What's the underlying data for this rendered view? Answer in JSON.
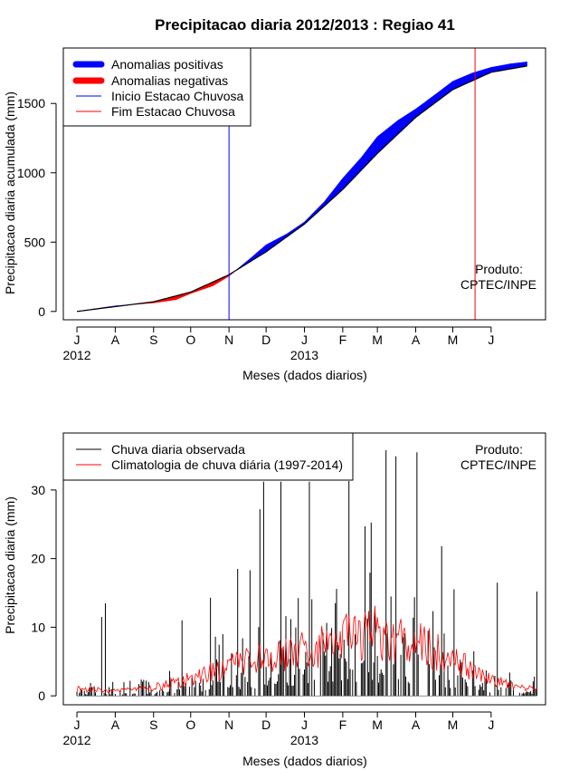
{
  "page_title": "Precipitacao diaria 2012/2013 : Regiao 41",
  "chart_data": [
    {
      "type": "area",
      "title": "Precipitacao diaria 2012/2013 : Regiao 41",
      "xlabel": "Meses (dados diarios)",
      "ylabel": "Precipitacao diaria acumulada (mm)",
      "xlim_days": [
        -11,
        379
      ],
      "ylim": [
        -60,
        1900
      ],
      "yticks": [
        0,
        500,
        1000,
        1500
      ],
      "month_ticks": [
        {
          "label": "J",
          "day": 0
        },
        {
          "label": "A",
          "day": 31
        },
        {
          "label": "S",
          "day": 62
        },
        {
          "label": "O",
          "day": 92
        },
        {
          "label": "N",
          "day": 123
        },
        {
          "label": "D",
          "day": 153
        },
        {
          "label": "J",
          "day": 184
        },
        {
          "label": "F",
          "day": 215
        },
        {
          "label": "M",
          "day": 243
        },
        {
          "label": "A",
          "day": 274
        },
        {
          "label": "M",
          "day": 304
        },
        {
          "label": "J",
          "day": 335
        }
      ],
      "year_labels": [
        {
          "label": "2012",
          "day": 0
        },
        {
          "label": "2013",
          "day": 184
        }
      ],
      "legend": [
        "Anomalias positivas",
        "Anomalias negativas",
        "Inicio Estacao Chuvosa",
        "Fim Estacao Chuvosa"
      ],
      "legend_position": "top-left",
      "colors": {
        "positive": "#0000ff",
        "negative": "#ff0000",
        "start": "#0000ff",
        "end": "#ff0000",
        "line": "#000000"
      },
      "season_start_day": 123,
      "season_end_day": 322,
      "climatology": {
        "day": [
          0,
          31,
          62,
          92,
          123,
          153,
          184,
          215,
          243,
          274,
          304,
          335,
          364
        ],
        "value": [
          0,
          35,
          70,
          140,
          265,
          430,
          630,
          880,
          1140,
          1400,
          1600,
          1725,
          1770
        ]
      },
      "observed": {
        "day": [
          0,
          15,
          31,
          62,
          80,
          92,
          110,
          123,
          140,
          153,
          170,
          184,
          200,
          215,
          230,
          243,
          260,
          274,
          290,
          304,
          320,
          335,
          350,
          364
        ],
        "value": [
          0,
          20,
          40,
          62,
          85,
          130,
          185,
          255,
          380,
          480,
          560,
          645,
          790,
          960,
          1110,
          1260,
          1380,
          1460,
          1565,
          1660,
          1720,
          1760,
          1785,
          1800
        ]
      },
      "annotation": [
        "Produto:",
        "CPTEC/INPE"
      ]
    },
    {
      "type": "bar",
      "xlabel": "Meses (dados diarios)",
      "ylabel": "Precipitacao diaria (mm)",
      "xlim_days": [
        -11,
        379
      ],
      "ylim": [
        -1.3,
        38.3
      ],
      "yticks": [
        0,
        10,
        20,
        30
      ],
      "month_ticks": [
        {
          "label": "J",
          "day": 0
        },
        {
          "label": "A",
          "day": 31
        },
        {
          "label": "S",
          "day": 62
        },
        {
          "label": "O",
          "day": 92
        },
        {
          "label": "N",
          "day": 123
        },
        {
          "label": "D",
          "day": 153
        },
        {
          "label": "J",
          "day": 184
        },
        {
          "label": "F",
          "day": 215
        },
        {
          "label": "M",
          "day": 243
        },
        {
          "label": "A",
          "day": 274
        },
        {
          "label": "M",
          "day": 304
        },
        {
          "label": "J",
          "day": 335
        }
      ],
      "year_labels": [
        {
          "label": "2012",
          "day": 0
        },
        {
          "label": "2013",
          "day": 184
        }
      ],
      "legend": [
        "Chuva diaria observada",
        "Climatologia de chuva diária (1997-2014)"
      ],
      "legend_position": "top-left",
      "colors": {
        "bars": "#000000",
        "climatology": "#ff0000"
      },
      "climatology_mean": {
        "day": [
          0,
          31,
          62,
          92,
          123,
          153,
          184,
          215,
          243,
          274,
          304,
          335,
          364
        ],
        "value": [
          1.0,
          0.8,
          1.2,
          2.5,
          4.5,
          5.5,
          6.8,
          8.3,
          9.2,
          8.0,
          5.3,
          2.2,
          1.2
        ]
      },
      "highlighted_days": [
        {
          "day": 20,
          "value": 11.5
        },
        {
          "day": 23,
          "value": 13.5
        },
        {
          "day": 85,
          "value": 11.0
        },
        {
          "day": 108,
          "value": 14.3
        },
        {
          "day": 130,
          "value": 18.5
        },
        {
          "day": 140,
          "value": 18.3
        },
        {
          "day": 148,
          "value": 27.2
        },
        {
          "day": 151,
          "value": 31.2
        },
        {
          "day": 165,
          "value": 31.2
        },
        {
          "day": 188,
          "value": 31.2
        },
        {
          "day": 220,
          "value": 31.3
        },
        {
          "day": 250,
          "value": 35.8
        },
        {
          "day": 258,
          "value": 34.9
        },
        {
          "day": 275,
          "value": 35.5
        },
        {
          "day": 295,
          "value": 21.8
        },
        {
          "day": 340,
          "value": 16.5
        },
        {
          "day": 372,
          "value": 15.2
        }
      ],
      "annotation": [
        "Produto:",
        "CPTEC/INPE"
      ]
    }
  ]
}
